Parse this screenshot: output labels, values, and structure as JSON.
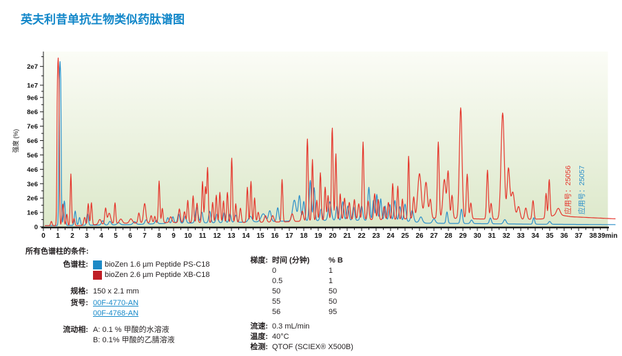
{
  "page": {
    "title": "英夫利昔单抗生物类似药肽谱图"
  },
  "chart_data": {
    "type": "line",
    "title": "英夫利昔单抗生物类似药肽谱图",
    "xlabel": "min",
    "ylabel": "强度 (%)",
    "x_axis": {
      "tick_start": 0,
      "tick_end": 39,
      "last_tick_label": "39min",
      "minor_step": 0.5
    },
    "y_axis_ticks": [
      [
        "0",
        0.0
      ],
      [
        "1e6",
        0.082
      ],
      [
        "2e6",
        0.164
      ],
      [
        "3e6",
        0.246
      ],
      [
        "4e6",
        0.328
      ],
      [
        "5e6",
        0.41
      ],
      [
        "6e6",
        0.492
      ],
      [
        "7e6",
        0.574
      ],
      [
        "8e6",
        0.656
      ],
      [
        "9e6",
        0.738
      ],
      [
        "1e7",
        0.808
      ],
      [
        "2e7",
        0.915
      ]
    ],
    "value_map_e6": [
      [
        0,
        0
      ],
      [
        9,
        0.738
      ],
      [
        10,
        0.808
      ],
      [
        20,
        0.915
      ],
      [
        24,
        0.985
      ]
    ],
    "plot_bg_top": "#fbfcf6",
    "plot_bg_bottom": "#dce8ca",
    "axis_color": "#1a1a1a",
    "annotations": [
      {
        "text": "应用号：25056",
        "color": "#e5352b"
      },
      {
        "text": "应用号：25057",
        "color": "#2b8fc9"
      }
    ],
    "series": [
      {
        "name": "bioZen 1.6 µm Peptide PS-C18",
        "application_id": "25057",
        "color": "#2b8fc9",
        "peaks_t_he6_sigma": [
          [
            1.15,
            21.5,
            0.05
          ],
          [
            1.45,
            1.7,
            0.06
          ],
          [
            2.2,
            1.0,
            0.06
          ],
          [
            2.5,
            0.55,
            0.06
          ],
          [
            3.05,
            0.8,
            0.06
          ],
          [
            4.1,
            0.3,
            0.08
          ],
          [
            4.6,
            0.25,
            0.08
          ],
          [
            5.2,
            0.15,
            0.1
          ],
          [
            6.3,
            0.2,
            0.1
          ],
          [
            7.1,
            0.3,
            0.08
          ],
          [
            7.8,
            0.25,
            0.08
          ],
          [
            8.6,
            0.4,
            0.07
          ],
          [
            8.95,
            0.45,
            0.07
          ],
          [
            9.35,
            0.65,
            0.07
          ],
          [
            9.8,
            0.5,
            0.07
          ],
          [
            10.6,
            1.1,
            0.09
          ],
          [
            10.95,
            0.75,
            0.07
          ],
          [
            11.5,
            0.8,
            0.07
          ],
          [
            12.0,
            0.6,
            0.07
          ],
          [
            12.5,
            0.7,
            0.07
          ],
          [
            12.9,
            0.6,
            0.07
          ],
          [
            13.3,
            0.5,
            0.08
          ],
          [
            14.3,
            0.4,
            0.12
          ],
          [
            15.2,
            0.55,
            0.15
          ],
          [
            15.65,
            0.75,
            0.09
          ],
          [
            16.2,
            0.95,
            0.07
          ],
          [
            17.35,
            1.45,
            0.12
          ],
          [
            17.7,
            1.75,
            0.08
          ],
          [
            18.0,
            1.35,
            0.07
          ],
          [
            18.45,
            2.8,
            0.07
          ],
          [
            18.72,
            2.3,
            0.06
          ],
          [
            19.2,
            0.8,
            0.07
          ],
          [
            19.8,
            1.3,
            0.1
          ],
          [
            20.3,
            1.0,
            0.07
          ],
          [
            20.7,
            1.3,
            0.07
          ],
          [
            21.05,
            1.0,
            0.07
          ],
          [
            21.45,
            0.95,
            0.07
          ],
          [
            22.0,
            1.0,
            0.08
          ],
          [
            22.5,
            2.3,
            0.07
          ],
          [
            22.82,
            1.4,
            0.06
          ],
          [
            23.05,
            1.8,
            0.06
          ],
          [
            23.32,
            1.5,
            0.06
          ],
          [
            23.62,
            1.0,
            0.06
          ],
          [
            23.95,
            1.1,
            0.07
          ],
          [
            24.3,
            1.4,
            0.07
          ],
          [
            24.65,
            1.0,
            0.07
          ],
          [
            25.0,
            1.2,
            0.07
          ],
          [
            25.5,
            0.8,
            0.09
          ],
          [
            26.1,
            0.4,
            0.1
          ],
          [
            27.0,
            0.3,
            0.1
          ],
          [
            27.9,
            0.8,
            0.06
          ],
          [
            28.9,
            1.0,
            0.07
          ],
          [
            29.6,
            0.25,
            0.08
          ],
          [
            30.9,
            0.4,
            0.07
          ],
          [
            31.9,
            0.3,
            0.09
          ],
          [
            33.9,
            0.45,
            0.06
          ],
          [
            35.0,
            0.2,
            0.08
          ]
        ],
        "baseline_t_ve6": [
          [
            0,
            0.08
          ],
          [
            2.5,
            0.1
          ],
          [
            6,
            0.15
          ],
          [
            9,
            0.25
          ],
          [
            13,
            0.3
          ],
          [
            15,
            0.35
          ],
          [
            17,
            0.4
          ],
          [
            20,
            0.45
          ],
          [
            24,
            0.45
          ],
          [
            25.5,
            0.35
          ],
          [
            26.5,
            0.25
          ],
          [
            30,
            0.22
          ],
          [
            34,
            0.18
          ],
          [
            39.6,
            0.15
          ]
        ]
      },
      {
        "name": "bioZen 2.6 µm Peptide XB-C18",
        "application_id": "25056",
        "color": "#e5352b",
        "peaks_t_he6_sigma": [
          [
            0.55,
            0.3,
            0.05
          ],
          [
            1.02,
            22.8,
            0.05
          ],
          [
            1.35,
            1.5,
            0.06
          ],
          [
            1.62,
            0.8,
            0.05
          ],
          [
            1.9,
            3.6,
            0.045
          ],
          [
            2.12,
            0.5,
            0.05
          ],
          [
            2.85,
            0.55,
            0.06
          ],
          [
            3.1,
            1.5,
            0.05
          ],
          [
            3.32,
            1.55,
            0.05
          ],
          [
            3.9,
            0.35,
            0.09
          ],
          [
            4.3,
            1.1,
            0.06
          ],
          [
            4.55,
            0.75,
            0.1
          ],
          [
            4.95,
            1.45,
            0.05
          ],
          [
            5.35,
            0.3,
            0.1
          ],
          [
            6.05,
            0.3,
            0.1
          ],
          [
            6.6,
            0.7,
            0.06
          ],
          [
            7.0,
            1.35,
            0.08
          ],
          [
            7.45,
            0.5,
            0.06
          ],
          [
            7.7,
            0.45,
            0.05
          ],
          [
            8.0,
            2.9,
            0.05
          ],
          [
            8.22,
            1.0,
            0.05
          ],
          [
            8.8,
            0.4,
            0.08
          ],
          [
            9.4,
            0.95,
            0.06
          ],
          [
            9.75,
            0.75,
            0.06
          ],
          [
            9.98,
            1.55,
            0.05
          ],
          [
            10.35,
            1.85,
            0.05
          ],
          [
            10.62,
            1.35,
            0.05
          ],
          [
            11.0,
            2.85,
            0.05
          ],
          [
            11.2,
            2.45,
            0.05
          ],
          [
            11.35,
            3.8,
            0.05
          ],
          [
            11.7,
            1.4,
            0.05
          ],
          [
            11.95,
            1.9,
            0.05
          ],
          [
            12.2,
            2.1,
            0.05
          ],
          [
            12.45,
            1.5,
            0.05
          ],
          [
            12.72,
            2.1,
            0.05
          ],
          [
            13.02,
            4.5,
            0.05
          ],
          [
            13.3,
            1.3,
            0.05
          ],
          [
            13.62,
            1.0,
            0.06
          ],
          [
            14.1,
            2.45,
            0.05
          ],
          [
            14.35,
            2.85,
            0.05
          ],
          [
            14.6,
            1.7,
            0.05
          ],
          [
            14.85,
            0.7,
            0.06
          ],
          [
            15.35,
            0.45,
            0.08
          ],
          [
            15.85,
            0.45,
            0.08
          ],
          [
            16.5,
            2.95,
            0.05
          ],
          [
            17.2,
            0.55,
            0.08
          ],
          [
            17.9,
            0.7,
            0.07
          ],
          [
            18.25,
            5.7,
            0.055
          ],
          [
            18.6,
            4.25,
            0.05
          ],
          [
            18.9,
            1.4,
            0.05
          ],
          [
            19.15,
            3.3,
            0.05
          ],
          [
            19.48,
            2.3,
            0.05
          ],
          [
            19.68,
            1.7,
            0.05
          ],
          [
            19.97,
            6.4,
            0.055
          ],
          [
            20.22,
            4.6,
            0.05
          ],
          [
            20.52,
            1.8,
            0.05
          ],
          [
            20.82,
            1.5,
            0.06
          ],
          [
            21.15,
            1.2,
            0.06
          ],
          [
            21.5,
            1.4,
            0.06
          ],
          [
            21.8,
            1.1,
            0.06
          ],
          [
            22.1,
            5.4,
            0.055
          ],
          [
            22.45,
            1.3,
            0.06
          ],
          [
            22.9,
            1.8,
            0.06
          ],
          [
            23.15,
            1.4,
            0.05
          ],
          [
            23.55,
            0.9,
            0.06
          ],
          [
            23.85,
            1.2,
            0.06
          ],
          [
            24.15,
            2.5,
            0.05
          ],
          [
            24.5,
            2.3,
            0.05
          ],
          [
            24.82,
            1.4,
            0.05
          ],
          [
            25.25,
            4.35,
            0.05
          ],
          [
            25.6,
            1.5,
            0.06
          ],
          [
            26.0,
            3.1,
            0.12
          ],
          [
            26.45,
            2.5,
            0.1
          ],
          [
            26.75,
            1.3,
            0.07
          ],
          [
            27.3,
            5.3,
            0.06
          ],
          [
            27.72,
            2.7,
            0.1
          ],
          [
            27.98,
            3.2,
            0.07
          ],
          [
            28.25,
            1.6,
            0.06
          ],
          [
            28.85,
            7.7,
            0.09
          ],
          [
            29.3,
            3.1,
            0.06
          ],
          [
            29.55,
            1.1,
            0.06
          ],
          [
            30.7,
            3.4,
            0.06
          ],
          [
            30.95,
            1.1,
            0.06
          ],
          [
            31.75,
            7.4,
            0.11
          ],
          [
            32.15,
            3.5,
            0.09
          ],
          [
            32.45,
            1.9,
            0.12
          ],
          [
            32.85,
            0.9,
            0.1
          ],
          [
            33.35,
            0.8,
            0.08
          ],
          [
            33.85,
            1.3,
            0.06
          ],
          [
            34.75,
            1.7,
            0.05
          ],
          [
            34.97,
            2.6,
            0.055
          ],
          [
            35.6,
            0.45,
            0.12
          ]
        ],
        "baseline_t_ve6": [
          [
            0,
            0.08
          ],
          [
            2.4,
            0.08
          ],
          [
            5.5,
            0.25
          ],
          [
            9,
            0.3
          ],
          [
            14,
            0.3
          ],
          [
            17,
            0.35
          ],
          [
            20,
            0.5
          ],
          [
            24,
            0.5
          ],
          [
            26,
            0.6
          ],
          [
            28,
            0.6
          ],
          [
            30,
            0.55
          ],
          [
            33,
            0.5
          ],
          [
            34.5,
            0.55
          ],
          [
            35.5,
            0.85
          ],
          [
            36.5,
            0.7
          ],
          [
            39.6,
            0.55
          ]
        ]
      }
    ]
  },
  "conditions": {
    "header": "所有色谱柱的条件:",
    "column_label": "色谱柱:",
    "columns": [
      {
        "swatch": "#1e8ac6",
        "text": "bioZen 1.6 µm Peptide PS-C18"
      },
      {
        "swatch": "#c01e25",
        "text": "bioZen 2.6 µm Peptide XB-C18"
      }
    ],
    "dimension_label": "规格:",
    "dimension": "150 x 2.1 mm",
    "part_label": "货号:",
    "part_numbers": [
      "00F-4770-AN",
      "00F-4768-AN"
    ],
    "mobile_label": "流动相:",
    "mobile_phases": [
      "A: 0.1 % 甲酸的水溶液",
      "B: 0.1% 甲酸的乙腈溶液"
    ],
    "gradient_label": "梯度:",
    "gradient_table": {
      "headers": [
        "时间 (分钟)",
        "% B"
      ],
      "rows": [
        [
          "0",
          "1"
        ],
        [
          "0.5",
          "1"
        ],
        [
          "50",
          "50"
        ],
        [
          "55",
          "50"
        ],
        [
          "56",
          "95"
        ]
      ]
    },
    "flow_label": "流速:",
    "flow": "0.3 mL/min",
    "temp_label": "温度:",
    "temp": "40°C",
    "detection_label": "检测:",
    "detection": "QTOF (SCIEX® X500B)"
  }
}
